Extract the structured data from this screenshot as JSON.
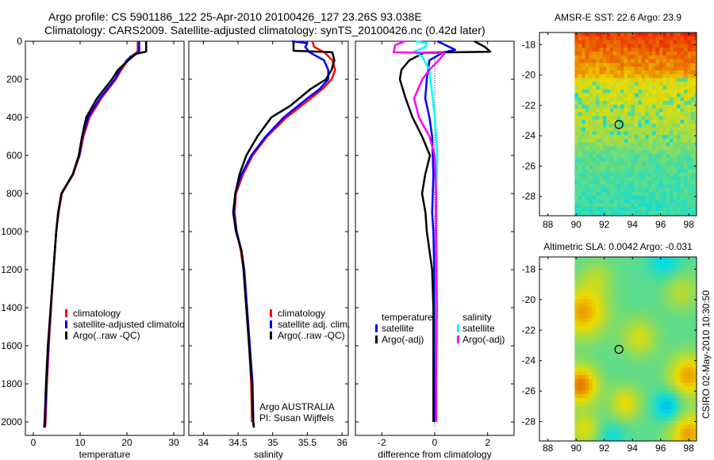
{
  "title": {
    "line1": "Argo profile: CS 5901186_122 25-Apr-2010 20100426_127 23.26S 93.038E",
    "line2": "Climatology: CARS2009. Satellite-adjusted climatology: synTS_20100426.nc (0.42d later)"
  },
  "credit": "CSIRO 02-May-2010 10:30:50",
  "chart_data": [
    {
      "type": "line",
      "id": "temperature",
      "xlabel": "temperature",
      "ylabel": "",
      "xlim": [
        -1.7,
        32.2
      ],
      "ylim": [
        2071,
        0
      ],
      "xticks": [
        0,
        10,
        20,
        30
      ],
      "yticks": [
        0,
        200,
        400,
        600,
        800,
        1000,
        1200,
        1400,
        1600,
        1800,
        2000
      ],
      "legend": [
        "climatology",
        "satellite-adjusted climatolo",
        "Argo(..raw -QC)"
      ],
      "series": [
        {
          "name": "climatology",
          "color": "#ff0000",
          "depth": [
            0,
            50,
            60,
            80,
            100,
            150,
            200,
            300,
            400,
            500,
            600,
            700,
            800,
            900,
            1000,
            1200,
            1400,
            1600,
            1800,
            2000,
            2030
          ],
          "values": [
            22.3,
            22.3,
            22.0,
            20.9,
            20.2,
            18.8,
            17.6,
            14.5,
            12.0,
            10.7,
            9.9,
            8.5,
            6.1,
            5.4,
            4.9,
            4.3,
            3.8,
            3.3,
            2.9,
            2.6,
            2.5
          ]
        },
        {
          "name": "satellite-adjusted climatology",
          "color": "#0000ff",
          "depth": [
            0,
            60,
            70,
            80,
            100,
            150,
            200,
            300,
            400,
            500,
            600,
            700,
            800,
            900,
            1000,
            1200,
            1400,
            1600,
            1800,
            2000,
            2020
          ],
          "values": [
            22.6,
            22.6,
            21.8,
            20.8,
            20.0,
            18.5,
            17.4,
            14.2,
            11.7,
            10.5,
            9.8,
            8.4,
            6.0,
            5.3,
            4.9,
            4.3,
            3.7,
            3.2,
            2.8,
            2.5,
            2.5
          ]
        },
        {
          "name": "Argo",
          "color": "#000000",
          "depth": [
            0,
            55,
            65,
            100,
            150,
            200,
            300,
            400,
            500,
            600,
            700,
            800,
            900,
            1000,
            1200,
            1400,
            1600,
            1800,
            2000,
            2030
          ],
          "values": [
            24.1,
            24.1,
            22.0,
            20.3,
            18.1,
            16.8,
            13.6,
            11.3,
            10.4,
            9.7,
            8.4,
            6.0,
            5.3,
            4.9,
            4.3,
            3.7,
            3.1,
            2.7,
            2.4,
            2.3
          ]
        }
      ]
    },
    {
      "type": "line",
      "id": "salinity",
      "xlabel": "salinity",
      "xlim": [
        33.79,
        36.09
      ],
      "ylim": [
        2071,
        0
      ],
      "xticks": [
        34,
        34.5,
        35,
        35.5,
        36
      ],
      "legend": [
        "climatology",
        "satellite adj. clim.",
        "Argo(..raw -QC)"
      ],
      "annotation": [
        "Argo AUSTRALIA",
        "PI: Susan Wijffels"
      ],
      "series": [
        {
          "name": "climatology",
          "color": "#ff0000",
          "depth": [
            0,
            30,
            60,
            100,
            150,
            200,
            250,
            300,
            400,
            500,
            600,
            700,
            800,
            900,
            1000,
            1100,
            1200,
            1400,
            1600,
            1800,
            2000
          ],
          "values": [
            35.57,
            35.6,
            35.75,
            35.86,
            35.9,
            35.85,
            35.72,
            35.55,
            35.2,
            34.92,
            34.71,
            34.57,
            34.47,
            34.45,
            34.48,
            34.54,
            34.58,
            34.62,
            34.66,
            34.69,
            34.7
          ]
        },
        {
          "name": "satellite adj. clim.",
          "color": "#0000ff",
          "depth": [
            0,
            10,
            30,
            58,
            100,
            150,
            200,
            250,
            300,
            400,
            500,
            600,
            700,
            800,
            900,
            1000,
            1100,
            1200,
            1400,
            1600,
            1800,
            2000,
            2020
          ],
          "values": [
            35.28,
            35.5,
            35.47,
            35.53,
            35.74,
            35.8,
            35.8,
            35.68,
            35.5,
            35.16,
            34.9,
            34.69,
            34.55,
            34.46,
            34.44,
            34.48,
            34.55,
            34.59,
            34.63,
            34.67,
            34.71,
            34.72,
            34.72
          ]
        },
        {
          "name": "Argo",
          "color": "#000000",
          "depth": [
            0,
            50,
            58,
            100,
            150,
            200,
            250,
            340,
            400,
            500,
            600,
            700,
            800,
            900,
            1000,
            1100,
            1200,
            1400,
            1600,
            1800,
            2000,
            2030
          ],
          "values": [
            35.3,
            35.3,
            35.86,
            35.89,
            35.85,
            35.77,
            35.55,
            35.25,
            34.98,
            34.78,
            34.62,
            34.52,
            34.46,
            34.43,
            34.47,
            34.55,
            34.58,
            34.62,
            34.66,
            34.7,
            34.72,
            34.73
          ]
        }
      ]
    },
    {
      "type": "line",
      "id": "difference",
      "xlabel": "difference from climatology",
      "xlim": [
        -3.0,
        3.0
      ],
      "ylim": [
        2071,
        0
      ],
      "xticks": [
        -2,
        0,
        2
      ],
      "legend": {
        "temperature_header": "temperature",
        "salinity_header": "salinity",
        "temperature": [
          "satellite",
          "Argo(-adj)"
        ],
        "salinity": [
          "satellite",
          "Argo(-adj)"
        ]
      },
      "series": [
        {
          "name": "temperature satellite",
          "color": "#0000ff",
          "depth": [
            0,
            20,
            45,
            60,
            100,
            200,
            300,
            400,
            500,
            700,
            900,
            1000,
            1200,
            1400,
            1600,
            1800,
            2000
          ],
          "values": [
            0.1,
            0.4,
            0.77,
            0.3,
            -0.2,
            -0.3,
            -0.36,
            -0.2,
            -0.1,
            -0.05,
            -0.1,
            -0.05,
            -0.02,
            0,
            0,
            0,
            0.02
          ]
        },
        {
          "name": "temperature Argo(-adj)",
          "color": "#000000",
          "depth": [
            0,
            30,
            55,
            60,
            100,
            150,
            200,
            300,
            400,
            500,
            600,
            700,
            800,
            900,
            1000,
            1200,
            1400,
            1600,
            1800,
            2000
          ],
          "values": [
            1.5,
            1.9,
            2.1,
            -0.4,
            -0.96,
            -1.26,
            -1.32,
            -1.1,
            -0.84,
            -0.48,
            -0.18,
            -0.36,
            -0.48,
            -0.35,
            -0.3,
            -0.1,
            -0.05,
            -0.05,
            -0.05,
            -0.05
          ]
        },
        {
          "name": "salinity satellite",
          "color": "#00ffff",
          "depth": [
            0,
            10,
            30,
            55,
            80,
            150,
            250,
            400,
            600,
            800,
            1000,
            1400,
            1800,
            2000
          ],
          "values": [
            -0.72,
            -0.3,
            -0.35,
            -0.78,
            -0.48,
            -0.2,
            -0.12,
            0,
            0.1,
            0.05,
            0.05,
            0.05,
            0.05,
            0.06
          ]
        },
        {
          "name": "salinity Argo(-adj)",
          "color": "#ff00ff",
          "depth": [
            0,
            20,
            58,
            62,
            100,
            150,
            200,
            300,
            400,
            500,
            600,
            800,
            1000,
            1400,
            1800,
            2000
          ],
          "values": [
            -1.13,
            -1.5,
            -1.55,
            0.38,
            0.15,
            -0.2,
            -0.47,
            -0.78,
            -0.6,
            -0.2,
            0,
            0.05,
            0.05,
            0.08,
            0.05,
            0.05
          ]
        }
      ]
    },
    {
      "type": "heatmap",
      "id": "sst-map",
      "title": "AMSR-E SST: 22.6 Argo: 23.9",
      "xlim": [
        87.4,
        98.55
      ],
      "ylim": [
        -29.27,
        -17.2
      ],
      "data_lon": [
        89.9,
        98.55
      ],
      "xticks": [
        88,
        90,
        92,
        94,
        96,
        98
      ],
      "yticks": [
        -18,
        -20,
        -22,
        -24,
        -26,
        -28
      ],
      "argo_position": {
        "lon": 93.04,
        "lat": -23.26
      }
    },
    {
      "type": "heatmap",
      "id": "sla-map",
      "title": "Altimetric SLA: 0.0042 Argo: -0.031",
      "xlim": [
        87.4,
        98.55
      ],
      "ylim": [
        -29.27,
        -17.2
      ],
      "data_lon": [
        89.9,
        98.55
      ],
      "xticks": [
        88,
        90,
        92,
        94,
        96,
        98
      ],
      "yticks": [
        -18,
        -20,
        -22,
        -24,
        -26,
        -28
      ],
      "argo_position": {
        "lon": 93.04,
        "lat": -23.26
      }
    }
  ]
}
